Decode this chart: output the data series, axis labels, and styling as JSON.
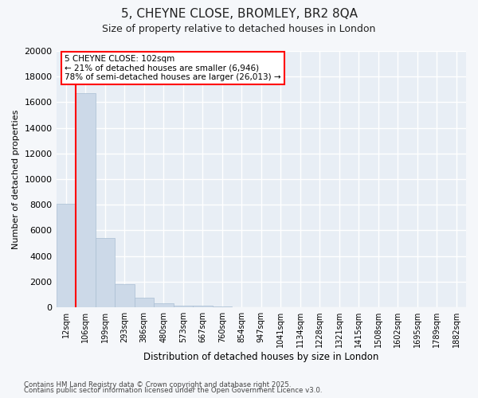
{
  "title1": "5, CHEYNE CLOSE, BROMLEY, BR2 8QA",
  "title2": "Size of property relative to detached houses in London",
  "xlabel": "Distribution of detached houses by size in London",
  "ylabel": "Number of detached properties",
  "categories": [
    "12sqm",
    "106sqm",
    "199sqm",
    "293sqm",
    "386sqm",
    "480sqm",
    "573sqm",
    "667sqm",
    "760sqm",
    "854sqm",
    "947sqm",
    "1041sqm",
    "1134sqm",
    "1228sqm",
    "1321sqm",
    "1415sqm",
    "1508sqm",
    "1602sqm",
    "1695sqm",
    "1789sqm",
    "1882sqm"
  ],
  "values": [
    8050,
    16700,
    5400,
    1820,
    750,
    300,
    150,
    100,
    55,
    0,
    0,
    0,
    0,
    0,
    0,
    0,
    0,
    0,
    0,
    0,
    0
  ],
  "bar_color": "#ccd9e8",
  "bar_edge_color": "#aabfd4",
  "red_line_index": 1,
  "ylim": [
    0,
    20000
  ],
  "yticks": [
    0,
    2000,
    4000,
    6000,
    8000,
    10000,
    12000,
    14000,
    16000,
    18000,
    20000
  ],
  "annotation_text": "5 CHEYNE CLOSE: 102sqm\n← 21% of detached houses are smaller (6,946)\n78% of semi-detached houses are larger (26,013) →",
  "footer1": "Contains HM Land Registry data © Crown copyright and database right 2025.",
  "footer2": "Contains public sector information licensed under the Open Government Licence v3.0.",
  "bg_color": "#f5f7fa",
  "plot_bg_color": "#e8eef5",
  "grid_color": "#ffffff"
}
